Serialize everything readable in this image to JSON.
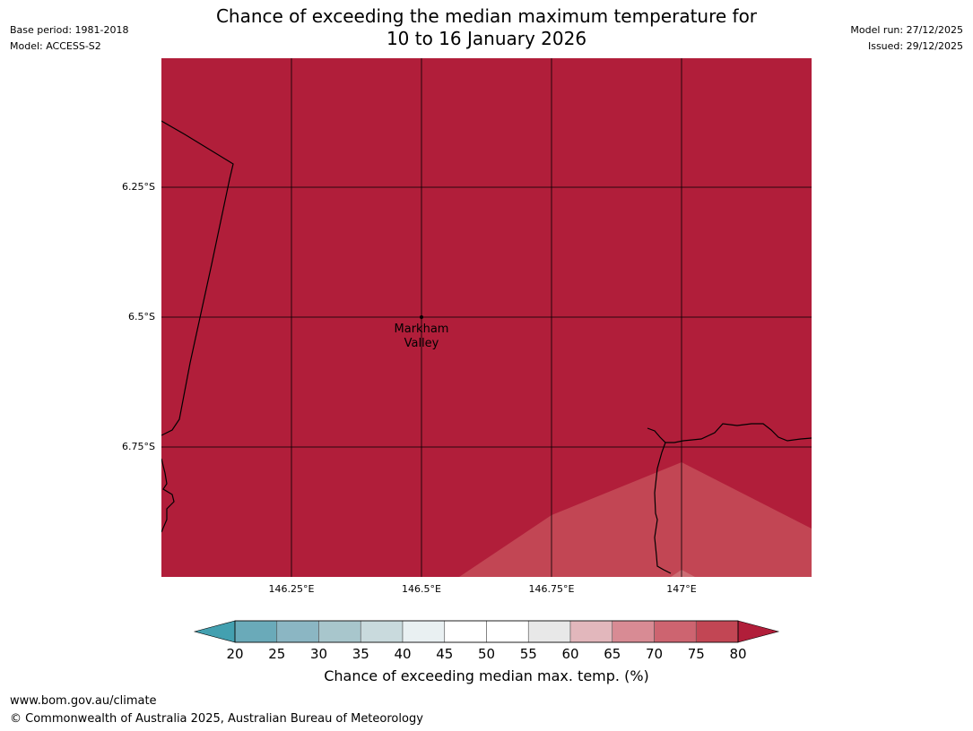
{
  "title": {
    "line1": "Chance of exceeding the median maximum temperature for",
    "line2": "10 to 16 January 2026"
  },
  "meta_left": {
    "base_period": "Base period: 1981-2018",
    "model": "Model: ACCESS-S2"
  },
  "meta_right": {
    "model_run": "Model run: 27/12/2025",
    "issued": "Issued: 29/12/2025"
  },
  "map": {
    "lat_labels": [
      "6.25°S",
      "6.5°S",
      "6.75°S"
    ],
    "lon_labels": [
      "146.25°E",
      "146.5°E",
      "146.75°E",
      "147°E"
    ],
    "place": {
      "name_line1": "Markham",
      "name_line2": "Valley"
    },
    "background_category": "80+",
    "background_color": "#b11e3a",
    "patch_category": "75-80",
    "patch_color": "#c24654",
    "patch_inner_color": "#cc6d74",
    "gridline_color": "#000000",
    "coastline_color": "#000000"
  },
  "colorbar": {
    "label": "Chance of exceeding median max. temp. (%)",
    "ticks": [
      "20",
      "25",
      "30",
      "35",
      "40",
      "45",
      "50",
      "55",
      "60",
      "65",
      "70",
      "75",
      "80"
    ],
    "under_color": "#43a0b0",
    "over_color": "#b11e3a",
    "segment_colors": [
      "#6aaab9",
      "#8bb6c3",
      "#a8c6cc",
      "#c9dadd",
      "#e9f0f2",
      "#ffffff",
      "#ffffff",
      "#e8e8e8",
      "#e2b7bc",
      "#d88b94",
      "#cd6470",
      "#c24654"
    ]
  },
  "footer": {
    "url": "www.bom.gov.au/climate",
    "copyright": "© Commonwealth of Australia 2025, Australian Bureau of Meteorology"
  }
}
